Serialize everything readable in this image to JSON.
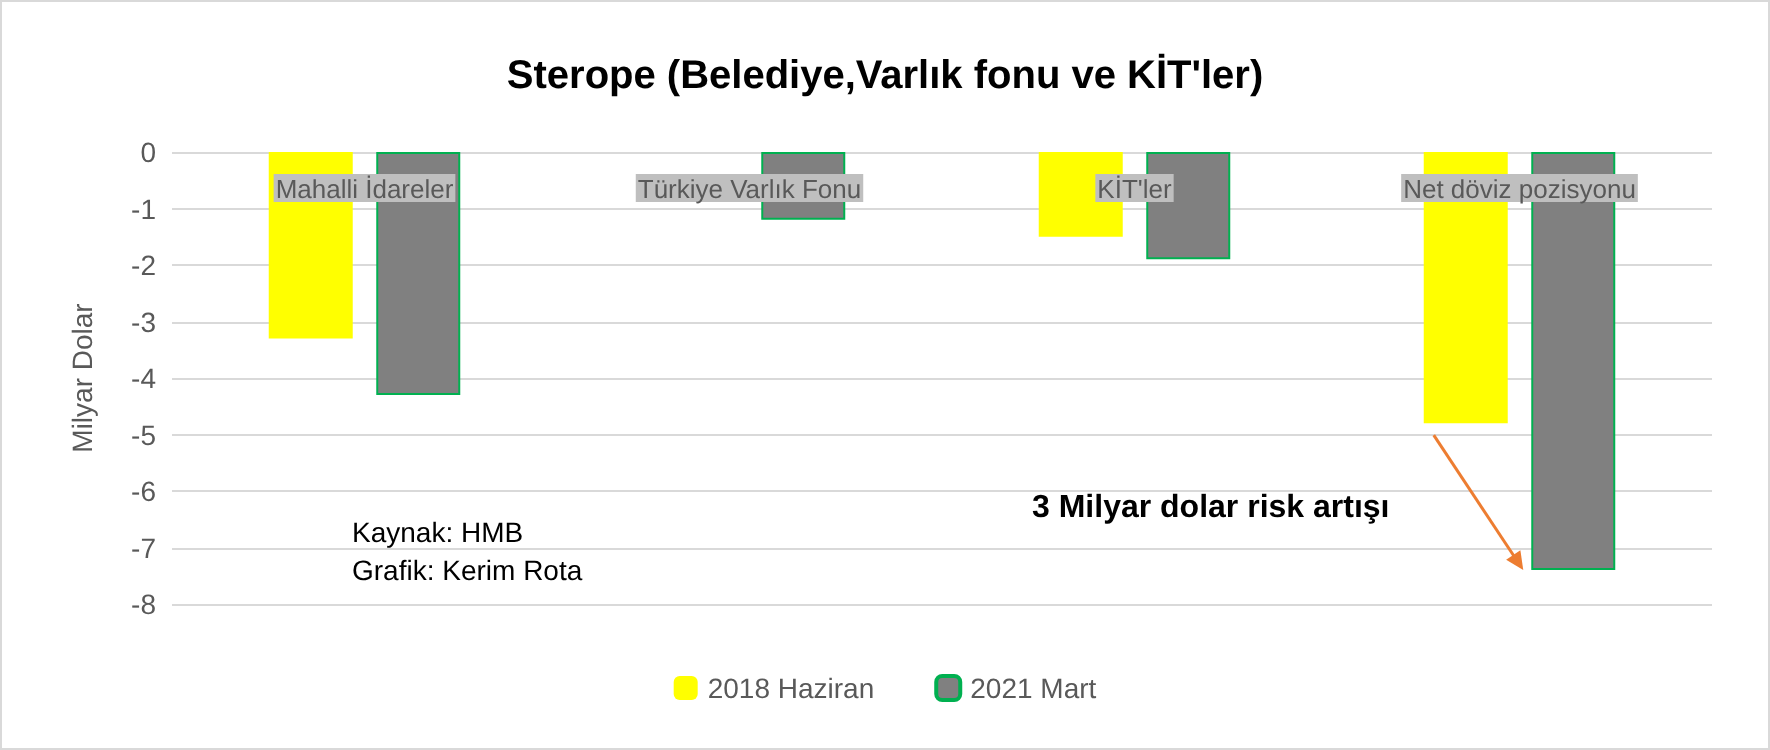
{
  "chart_data": {
    "type": "bar",
    "title": "Sterope (Belediye,Varlık fonu ve KİT'ler)",
    "ylabel": "Milyar Dolar",
    "categories": [
      "Mahalli İdareler",
      "Türkiye Varlık Fonu",
      "KİT'ler",
      "Net döviz pozisyonu"
    ],
    "series": [
      {
        "name": "2018 Haziran",
        "color": "#ffff00",
        "values": [
          -3.3,
          null,
          -1.5,
          -4.8
        ]
      },
      {
        "name": "2021 Mart",
        "color": "#808080",
        "values": [
          -4.3,
          -1.2,
          -1.9,
          -7.4
        ]
      }
    ],
    "ylim": [
      -8,
      0
    ],
    "yticks": [
      0,
      -1,
      -2,
      -3,
      -4,
      -5,
      -6,
      -7,
      -8
    ],
    "grid": "y",
    "legend": "bottom",
    "annotations": [
      "Kaynak: HMB",
      "Grafik: Kerim Rota",
      "3 Milyar dolar risk artışı"
    ]
  }
}
